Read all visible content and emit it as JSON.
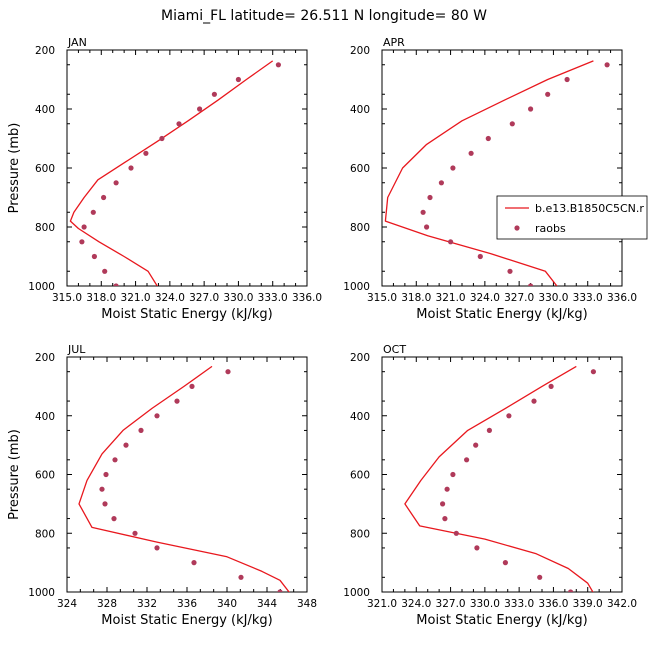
{
  "title": "Miami_FL  latitude= 26.511 N longitude= 80 W",
  "colors": {
    "model_line": "#e8181e",
    "raobs_marker": "#b03a5a"
  },
  "legend": {
    "placement": "right, over APR panel",
    "entries": [
      {
        "label": "b.e13.B1850C5CN.r",
        "style": "line"
      },
      {
        "label": "raobs",
        "style": "marker"
      }
    ]
  },
  "chart_data": [
    {
      "type": "line",
      "panel_label": "JAN",
      "xlabel": "Moist Static Energy (kJ/kg)",
      "ylabel": "Pressure (mb)",
      "xlim": [
        315,
        336
      ],
      "ylim": [
        1000,
        200
      ],
      "y_reversed": true,
      "x_ticks": [
        "315.0",
        "318.0",
        "321.0",
        "324.0",
        "327.0",
        "330.0",
        "333.0",
        "336.0"
      ],
      "y_ticks": [
        "200",
        "400",
        "600",
        "800",
        "1000"
      ],
      "series": [
        {
          "name": "b.e13.B1850C5CN.r",
          "style": "line",
          "points": [
            [
              333.0,
              237
            ],
            [
              330.7,
              300
            ],
            [
              328.2,
              370
            ],
            [
              325.6,
              440
            ],
            [
              322.9,
              510
            ],
            [
              320.1,
              580
            ],
            [
              317.7,
              640
            ],
            [
              316.5,
              700
            ],
            [
              315.6,
              750
            ],
            [
              315.3,
              780
            ],
            [
              316.0,
              805
            ],
            [
              317.8,
              850
            ],
            [
              320.0,
              900
            ],
            [
              322.1,
              950
            ],
            [
              323.1,
              1013
            ]
          ]
        },
        {
          "name": "raobs",
          "style": "marker",
          "points": [
            [
              333.5,
              250
            ],
            [
              330.0,
              300
            ],
            [
              327.9,
              350
            ],
            [
              326.6,
              400
            ],
            [
              324.8,
              450
            ],
            [
              323.3,
              500
            ],
            [
              321.9,
              550
            ],
            [
              320.6,
              600
            ],
            [
              319.3,
              650
            ],
            [
              318.2,
              700
            ],
            [
              317.3,
              750
            ],
            [
              316.5,
              800
            ],
            [
              316.3,
              850
            ],
            [
              317.4,
              900
            ],
            [
              318.3,
              950
            ],
            [
              319.3,
              1000
            ]
          ]
        }
      ]
    },
    {
      "type": "line",
      "panel_label": "APR",
      "xlabel": "Moist Static Energy (kJ/kg)",
      "ylabel": "",
      "xlim": [
        315,
        336
      ],
      "ylim": [
        1000,
        200
      ],
      "y_reversed": true,
      "x_ticks": [
        "315.0",
        "318.0",
        "321.0",
        "324.0",
        "327.0",
        "330.0",
        "333.0",
        "336.0"
      ],
      "y_ticks": [
        "200",
        "400",
        "600",
        "800",
        "1000"
      ],
      "series": [
        {
          "name": "b.e13.B1850C5CN.r",
          "style": "line",
          "points": [
            [
              333.5,
              237
            ],
            [
              329.5,
              300
            ],
            [
              325.7,
              370
            ],
            [
              322.0,
              440
            ],
            [
              318.9,
              520
            ],
            [
              316.8,
              600
            ],
            [
              315.5,
              700
            ],
            [
              315.3,
              780
            ],
            [
              319.0,
              830
            ],
            [
              324.5,
              890
            ],
            [
              329.3,
              950
            ],
            [
              330.3,
              1000
            ]
          ]
        },
        {
          "name": "raobs",
          "style": "marker",
          "points": [
            [
              334.7,
              250
            ],
            [
              331.2,
              300
            ],
            [
              329.5,
              350
            ],
            [
              328.0,
              400
            ],
            [
              326.4,
              450
            ],
            [
              324.3,
              500
            ],
            [
              322.8,
              550
            ],
            [
              321.2,
              600
            ],
            [
              320.2,
              650
            ],
            [
              319.2,
              700
            ],
            [
              318.6,
              750
            ],
            [
              318.9,
              800
            ],
            [
              321.0,
              850
            ],
            [
              323.6,
              900
            ],
            [
              326.2,
              950
            ],
            [
              328.0,
              1000
            ]
          ]
        }
      ]
    },
    {
      "type": "line",
      "panel_label": "JUL",
      "xlabel": "Moist Static Energy (kJ/kg)",
      "ylabel": "Pressure (mb)",
      "xlim": [
        324,
        348
      ],
      "ylim": [
        1000,
        200
      ],
      "y_reversed": true,
      "x_ticks": [
        "324",
        "328",
        "332",
        "336",
        "340",
        "344",
        "348"
      ],
      "y_ticks": [
        "200",
        "400",
        "600",
        "800",
        "1000"
      ],
      "series": [
        {
          "name": "b.e13.B1850C5CN.r",
          "style": "line",
          "points": [
            [
              338.5,
              232
            ],
            [
              335.7,
              300
            ],
            [
              332.5,
              375
            ],
            [
              329.6,
              450
            ],
            [
              327.5,
              530
            ],
            [
              326.0,
              620
            ],
            [
              325.2,
              700
            ],
            [
              326.5,
              780
            ],
            [
              333.0,
              830
            ],
            [
              340.0,
              880
            ],
            [
              343.5,
              930
            ],
            [
              345.3,
              960
            ],
            [
              346.5,
              1013
            ]
          ]
        },
        {
          "name": "raobs",
          "style": "marker",
          "points": [
            [
              340.1,
              250
            ],
            [
              336.5,
              300
            ],
            [
              335.0,
              350
            ],
            [
              333.0,
              400
            ],
            [
              331.4,
              450
            ],
            [
              329.9,
              500
            ],
            [
              328.8,
              550
            ],
            [
              327.9,
              600
            ],
            [
              327.5,
              650
            ],
            [
              327.8,
              700
            ],
            [
              328.7,
              750
            ],
            [
              330.8,
              800
            ],
            [
              333.0,
              850
            ],
            [
              336.7,
              900
            ],
            [
              341.4,
              950
            ],
            [
              345.3,
              1000
            ]
          ]
        }
      ]
    },
    {
      "type": "line",
      "panel_label": "OCT",
      "xlabel": "Moist Static Energy (kJ/kg)",
      "ylabel": "",
      "xlim": [
        321,
        342
      ],
      "ylim": [
        1000,
        200
      ],
      "y_reversed": true,
      "x_ticks": [
        "321.0",
        "324.0",
        "327.0",
        "330.0",
        "333.0",
        "336.0",
        "339.0",
        "342.0"
      ],
      "y_ticks": [
        "200",
        "400",
        "600",
        "800",
        "1000"
      ],
      "series": [
        {
          "name": "b.e13.B1850C5CN.r",
          "style": "line",
          "points": [
            [
              338.0,
              232
            ],
            [
              335.0,
              300
            ],
            [
              331.8,
              375
            ],
            [
              328.5,
              450
            ],
            [
              326.0,
              540
            ],
            [
              324.4,
              620
            ],
            [
              323.0,
              700
            ],
            [
              324.3,
              775
            ],
            [
              330.0,
              820
            ],
            [
              334.5,
              870
            ],
            [
              337.3,
              920
            ],
            [
              339.0,
              970
            ],
            [
              339.5,
              1003
            ]
          ]
        },
        {
          "name": "raobs",
          "style": "marker",
          "points": [
            [
              339.5,
              250
            ],
            [
              335.8,
              300
            ],
            [
              334.3,
              350
            ],
            [
              332.1,
              400
            ],
            [
              330.4,
              450
            ],
            [
              329.2,
              500
            ],
            [
              328.4,
              550
            ],
            [
              327.2,
              600
            ],
            [
              326.7,
              650
            ],
            [
              326.3,
              700
            ],
            [
              326.5,
              750
            ],
            [
              327.5,
              800
            ],
            [
              329.3,
              850
            ],
            [
              331.8,
              900
            ],
            [
              334.8,
              950
            ],
            [
              337.5,
              1000
            ]
          ]
        }
      ]
    }
  ]
}
